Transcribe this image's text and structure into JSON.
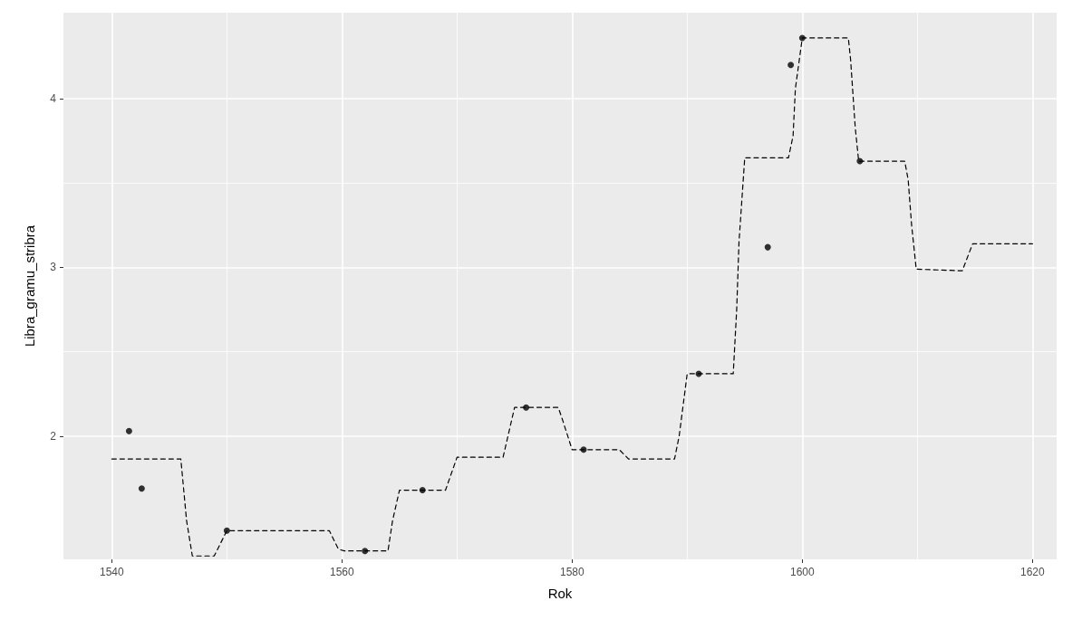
{
  "chart_data": {
    "type": "scatter",
    "xlabel": "Rok",
    "ylabel": "Libra_gramu_stribra",
    "xlim": [
      1535.8,
      1622.1
    ],
    "ylim": [
      1.27,
      4.51
    ],
    "xticks": [
      1540,
      1560,
      1580,
      1600,
      1620
    ],
    "yticks": [
      2,
      3,
      4
    ],
    "grid": true,
    "series": [
      {
        "type": "line",
        "color": "#000000",
        "line_style": "dashed",
        "marker": "none",
        "x": [
          1540,
          1546.0,
          1546.5,
          1547.0,
          1548.9,
          1550.0,
          1558.9,
          1559.7,
          1560.2,
          1564.0,
          1564.4,
          1565.0,
          1569.0,
          1570.0,
          1574.0,
          1575.0,
          1578.8,
          1579.2,
          1580.0,
          1584.1,
          1584.9,
          1588.9,
          1589.3,
          1590.0,
          1594.0,
          1594.3,
          1594.5,
          1594.8,
          1595.0,
          1598.8,
          1599.2,
          1599.4,
          1600.0,
          1604.0,
          1604.2,
          1604.6,
          1604.9,
          1608.9,
          1609.2,
          1609.5,
          1609.9,
          1613.9,
          1614.8,
          1620
        ],
        "values": [
          1.865,
          1.865,
          1.5,
          1.29,
          1.29,
          1.44,
          1.44,
          1.33,
          1.32,
          1.32,
          1.5,
          1.68,
          1.68,
          1.875,
          1.875,
          2.17,
          2.17,
          2.09,
          1.92,
          1.92,
          1.865,
          1.865,
          2.0,
          2.37,
          2.37,
          2.75,
          3.15,
          3.45,
          3.65,
          3.65,
          3.78,
          4.06,
          4.36,
          4.36,
          4.23,
          3.83,
          3.63,
          3.63,
          3.52,
          3.25,
          2.99,
          2.98,
          3.14,
          3.14
        ]
      },
      {
        "color": "#000000",
        "marker": "circle",
        "x": [
          1541.5,
          1542.6,
          1550.0,
          1562.0,
          1567.0,
          1576.0,
          1581.0,
          1591.0,
          1597.0,
          1599.0,
          1600.0,
          1605.0
        ],
        "values": [
          2.03,
          1.69,
          1.44,
          1.32,
          1.68,
          2.17,
          1.92,
          2.37,
          3.12,
          4.2,
          4.36,
          3.63
        ]
      }
    ]
  }
}
